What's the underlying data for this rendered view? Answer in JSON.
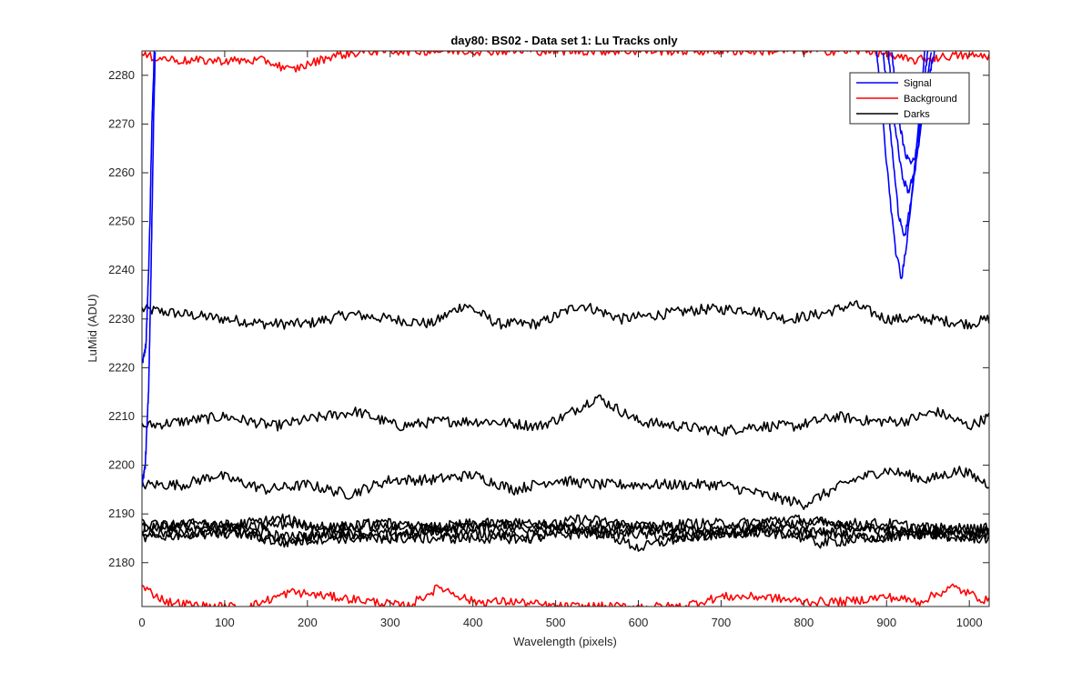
{
  "chart_data": {
    "type": "line",
    "title": "day80: BS02 - Data set 1: Lu Tracks only",
    "xlabel": "Wavelength (pixels)",
    "ylabel": "LuMid (ADU)",
    "xlim": [
      0,
      1024
    ],
    "ylim": [
      2171,
      2285
    ],
    "xticks": [
      0,
      100,
      200,
      300,
      400,
      500,
      600,
      700,
      800,
      900,
      1000
    ],
    "yticks": [
      2180,
      2190,
      2200,
      2210,
      2220,
      2230,
      2240,
      2250,
      2260,
      2270,
      2280
    ],
    "grid": false,
    "legend_position": "top-right",
    "legend": [
      {
        "label": "Signal",
        "color": "#0000ff"
      },
      {
        "label": "Background",
        "color": "#ff0000"
      },
      {
        "label": "Darks",
        "color": "#000000"
      }
    ],
    "series": [
      {
        "group": "Darks",
        "color": "#000000",
        "x": [
          0,
          50,
          100,
          150,
          200,
          250,
          300,
          350,
          390,
          430,
          480,
          530,
          580,
          630,
          680,
          730,
          780,
          820,
          860,
          900,
          950,
          1000,
          1024
        ],
        "y": [
          2232,
          2231,
          2230,
          2229,
          2229,
          2231,
          2230,
          2229,
          2233,
          2229,
          2229,
          2233,
          2230,
          2231,
          2232,
          2232,
          2230,
          2231,
          2233,
          2230,
          2230,
          2229,
          2230
        ]
      },
      {
        "group": "Darks",
        "color": "#000000",
        "x": [
          0,
          50,
          100,
          160,
          220,
          260,
          310,
          360,
          420,
          480,
          510,
          550,
          600,
          650,
          700,
          740,
          790,
          840,
          880,
          920,
          960,
          1000,
          1024
        ],
        "y": [
          2208,
          2209,
          2210,
          2208,
          2210,
          2211,
          2208,
          2209,
          2209,
          2208,
          2210,
          2214,
          2209,
          2208,
          2207,
          2208,
          2208,
          2210,
          2209,
          2209,
          2211,
          2208,
          2210
        ]
      },
      {
        "group": "Darks",
        "color": "#000000",
        "x": [
          0,
          50,
          90,
          150,
          200,
          250,
          300,
          350,
          400,
          450,
          500,
          550,
          600,
          650,
          700,
          750,
          800,
          860,
          900,
          950,
          990,
          1024
        ],
        "y": [
          2196,
          2196,
          2198,
          2195,
          2196,
          2194,
          2197,
          2197,
          2198,
          2195,
          2197,
          2196,
          2196,
          2196,
          2196,
          2194,
          2192,
          2197,
          2199,
          2197,
          2199,
          2196
        ]
      },
      {
        "group": "Darks",
        "color": "#000000",
        "x": [
          0,
          60,
          120,
          180,
          240,
          300,
          360,
          420,
          480,
          530,
          580,
          640,
          700,
          760,
          820,
          880,
          940,
          1000,
          1024
        ],
        "y": [
          2187,
          2188,
          2187,
          2185,
          2186,
          2186,
          2187,
          2187,
          2187,
          2189,
          2188,
          2187,
          2186,
          2186,
          2186,
          2187,
          2187,
          2186,
          2186
        ]
      },
      {
        "group": "Darks",
        "color": "#000000",
        "x": [
          0,
          60,
          120,
          170,
          230,
          290,
          350,
          410,
          470,
          530,
          590,
          650,
          710,
          770,
          830,
          890,
          950,
          1000,
          1024
        ],
        "y": [
          2185,
          2186,
          2186,
          2185,
          2186,
          2185,
          2186,
          2186,
          2185,
          2186,
          2186,
          2185,
          2186,
          2187,
          2186,
          2185,
          2186,
          2185,
          2186
        ]
      },
      {
        "group": "Darks",
        "color": "#000000",
        "x": [
          0,
          60,
          120,
          170,
          220,
          280,
          340,
          400,
          460,
          520,
          580,
          640,
          700,
          760,
          820,
          880,
          940,
          1000,
          1024
        ],
        "y": [
          2188,
          2187,
          2188,
          2189,
          2187,
          2188,
          2187,
          2188,
          2188,
          2187,
          2188,
          2186,
          2187,
          2188,
          2188,
          2187,
          2186,
          2187,
          2187
        ]
      },
      {
        "group": "Darks",
        "color": "#000000",
        "x": [
          0,
          60,
          120,
          170,
          220,
          280,
          340,
          400,
          460,
          520,
          560,
          600,
          650,
          700,
          760,
          820,
          880,
          940,
          1000,
          1024
        ],
        "y": [
          2186,
          2186,
          2186,
          2184,
          2185,
          2185,
          2185,
          2185,
          2185,
          2187,
          2186,
          2183,
          2185,
          2186,
          2187,
          2184,
          2185,
          2186,
          2185,
          2185
        ]
      },
      {
        "group": "Darks",
        "color": "#000000",
        "x": [
          0,
          60,
          120,
          180,
          240,
          300,
          360,
          420,
          480,
          540,
          600,
          660,
          720,
          780,
          840,
          900,
          960,
          1024
        ],
        "y": [
          2187,
          2188,
          2187,
          2188,
          2187,
          2188,
          2187,
          2188,
          2188,
          2187,
          2187,
          2188,
          2188,
          2189,
          2188,
          2188,
          2187,
          2187
        ]
      },
      {
        "group": "Background",
        "color": "#ff0000",
        "x": [
          0,
          50,
          100,
          150,
          180,
          230,
          280,
          330,
          380,
          430,
          480,
          530,
          580,
          630,
          680,
          730,
          780,
          830,
          880,
          930,
          980,
          1024
        ],
        "y": [
          2284,
          2283,
          2283,
          2283,
          2281,
          2284,
          2285,
          2285,
          2285,
          2285,
          2285,
          2285,
          2285,
          2285,
          2285,
          2285,
          2285,
          2285,
          2285,
          2283,
          2284,
          2284
        ]
      },
      {
        "group": "Background",
        "color": "#ff0000",
        "x": [
          0,
          30,
          80,
          130,
          180,
          230,
          280,
          320,
          360,
          400,
          450,
          500,
          550,
          600,
          650,
          700,
          750,
          800,
          850,
          900,
          940,
          980,
          1024
        ],
        "y": [
          2175,
          2172,
          2171,
          2171,
          2174,
          2173,
          2172,
          2171,
          2175,
          2172,
          2172,
          2171,
          2171,
          2171,
          2171,
          2173,
          2173,
          2172,
          2172,
          2173,
          2172,
          2175,
          2172
        ]
      },
      {
        "group": "Signal",
        "color": "#0000ff",
        "x": [
          0,
          4,
          8,
          11,
          14,
          16
        ],
        "y": [
          2196,
          2200,
          2215,
          2240,
          2270,
          2285
        ]
      },
      {
        "group": "Signal",
        "color": "#0000ff",
        "x": [
          1,
          5,
          9,
          12,
          15
        ],
        "y": [
          2221,
          2225,
          2245,
          2270,
          2285
        ]
      },
      {
        "group": "Signal",
        "color": "#0000ff",
        "x": [
          888,
          900,
          910,
          918,
          926,
          936,
          946
        ],
        "y": [
          2285,
          2262,
          2245,
          2238,
          2248,
          2265,
          2285
        ]
      },
      {
        "group": "Signal",
        "color": "#0000ff",
        "x": [
          896,
          906,
          914,
          922,
          930,
          938,
          950
        ],
        "y": [
          2285,
          2266,
          2252,
          2247,
          2254,
          2268,
          2285
        ]
      },
      {
        "group": "Signal",
        "color": "#0000ff",
        "x": [
          902,
          910,
          918,
          926,
          934,
          942,
          954
        ],
        "y": [
          2285,
          2270,
          2260,
          2256,
          2260,
          2271,
          2285
        ]
      },
      {
        "group": "Signal",
        "color": "#0000ff",
        "x": [
          906,
          914,
          922,
          930,
          938,
          946,
          958
        ],
        "y": [
          2285,
          2272,
          2264,
          2262,
          2265,
          2275,
          2285
        ]
      }
    ]
  }
}
